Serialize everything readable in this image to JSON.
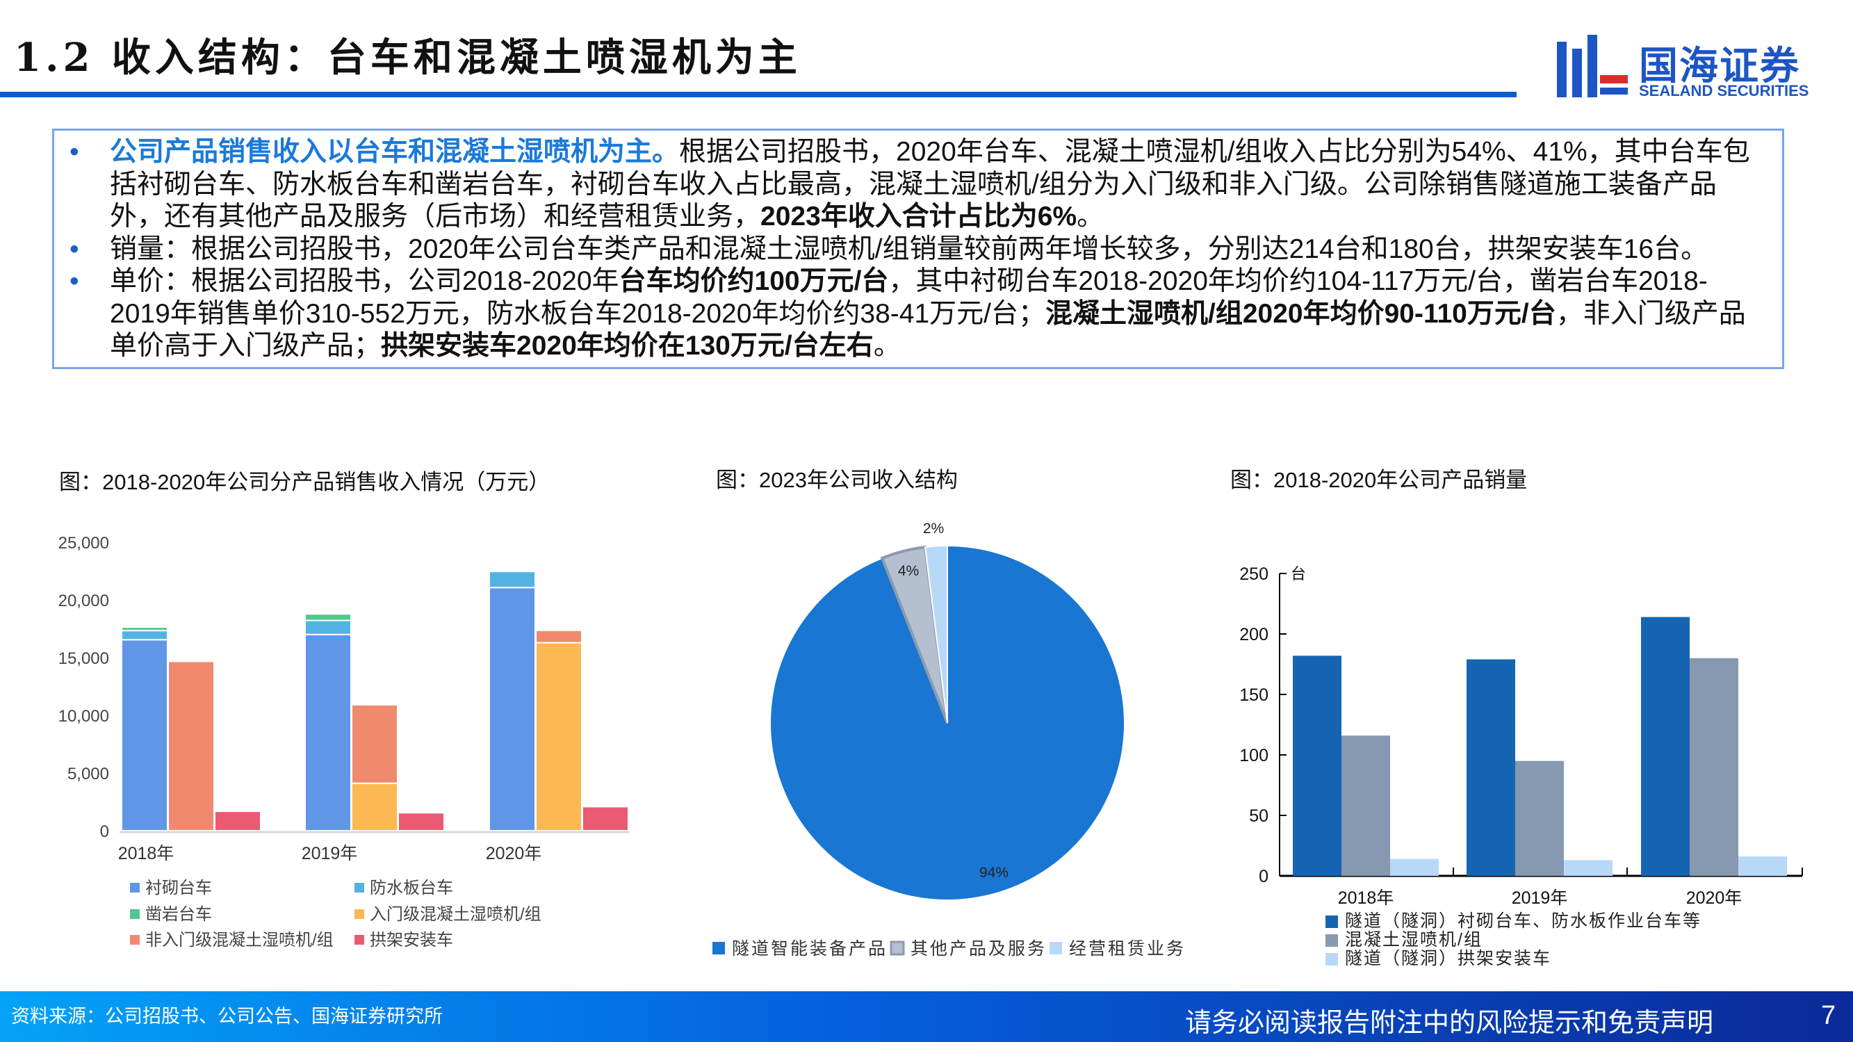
{
  "header": {
    "title": "1.2 收入结构：台车和混凝土喷湿机为主",
    "logo_cn": "国海证券",
    "logo_en": "SEALAND SECURITIES"
  },
  "bullets": [
    [
      {
        "t": "公司产品销售收入以台车和混凝土湿喷机为主。",
        "s": "blue"
      },
      {
        "t": "根据公司招股书，2020年台车、混凝土喷湿机/组收入占比分别为54%、41%，其中台车包括衬砌台车、防水板台车和凿岩台车，衬砌台车收入占比最高，混凝土湿喷机/组分为入门级和非入门级。公司除销售隧道施工装备产品外，还有其他产品及服务（后市场）和经营租赁业务，",
        "s": ""
      },
      {
        "t": "2023年收入合计占比为6%",
        "s": "bold"
      },
      {
        "t": "。",
        "s": ""
      }
    ],
    [
      {
        "t": "销量：根据公司招股书，2020年公司台车类产品和混凝土湿喷机/组销量较前两年增长较多，分别达214台和180台，拱架安装车16台。",
        "s": ""
      }
    ],
    [
      {
        "t": "单价：根据公司招股书，公司2018-2020年",
        "s": ""
      },
      {
        "t": "台车均价约100万元/台",
        "s": "bold"
      },
      {
        "t": "，其中衬砌台车2018-2020年均价约104-117万元/台，凿岩台车2018-2019年销售单价310-552万元，防水板台车2018-2020年均价约38-41万元/台；",
        "s": ""
      },
      {
        "t": "混凝土湿喷机/组2020年均价90-110万元/台",
        "s": "bold"
      },
      {
        "t": "，非入门级产品单价高于入门级产品；",
        "s": ""
      },
      {
        "t": "拱架安装车2020年均价在130万元/台左右",
        "s": "bold"
      },
      {
        "t": "。",
        "s": ""
      }
    ]
  ],
  "chart_data": [
    {
      "type": "bar",
      "title": "图：2018-2020年公司分产品销售收入情况（万元）",
      "categories": [
        "2018年",
        "2019年",
        "2020年"
      ],
      "ylim": [
        0,
        25000
      ],
      "yticks": [
        "0",
        "5,000",
        "10,000",
        "15,000",
        "20,000",
        "25,000"
      ],
      "series": [
        {
          "name": "衬砌台车",
          "color": "#5f96e6",
          "stack": 0,
          "values": [
            16550,
            17000,
            21070
          ]
        },
        {
          "name": "防水板台车",
          "color": "#54b2e3",
          "stack": 0,
          "values": [
            790,
            1220,
            1390
          ]
        },
        {
          "name": "凿岩台车",
          "color": "#52c68e",
          "stack": 0,
          "values": [
            300,
            560,
            0
          ]
        },
        {
          "name": "入门级混凝土湿喷机/组",
          "color": "#fcb853",
          "stack": 1,
          "values": [
            0,
            4110,
            16290
          ]
        },
        {
          "name": "非入门级混凝土湿喷机/组",
          "color": "#f08a6f",
          "stack": 1,
          "values": [
            14670,
            6800,
            1070
          ]
        },
        {
          "name": "拱架安装车",
          "color": "#ea5a72",
          "stack": 2,
          "values": [
            1680,
            1550,
            2080
          ]
        }
      ]
    },
    {
      "type": "pie",
      "title": "图：2023年公司收入结构",
      "slices": [
        {
          "name": "隧道智能装备产品",
          "value": 94,
          "label": "94%",
          "color": "#1976d2"
        },
        {
          "name": "其他产品及服务",
          "value": 4,
          "label": "4%",
          "color": "#b4c0d0"
        },
        {
          "name": "经营租赁业务",
          "value": 2,
          "label": "2%",
          "color": "#b8d8f8"
        }
      ]
    },
    {
      "type": "bar",
      "title": "图：2018-2020年公司产品销量",
      "unit": "台",
      "categories": [
        "2018年",
        "2019年",
        "2020年"
      ],
      "ylim": [
        0,
        250
      ],
      "yticks": [
        "0",
        "50",
        "100",
        "150",
        "200",
        "250"
      ],
      "series": [
        {
          "name": "隧道（隧洞）衬砌台车、防水板作业台车等",
          "color": "#1565b3",
          "values": [
            182,
            179,
            214
          ]
        },
        {
          "name": "混凝土湿喷机/组",
          "color": "#8699b0",
          "values": [
            116,
            95,
            180
          ]
        },
        {
          "name": "隧道（隧洞）拱架安装车",
          "color": "#b8d8f8",
          "values": [
            14,
            13,
            16
          ]
        }
      ]
    }
  ],
  "footer": {
    "source": "资料来源：公司招股书、公司公告、国海证券研究所",
    "disclaimer": "请务必阅读报告附注中的风险提示和免责声明",
    "page": "7"
  }
}
